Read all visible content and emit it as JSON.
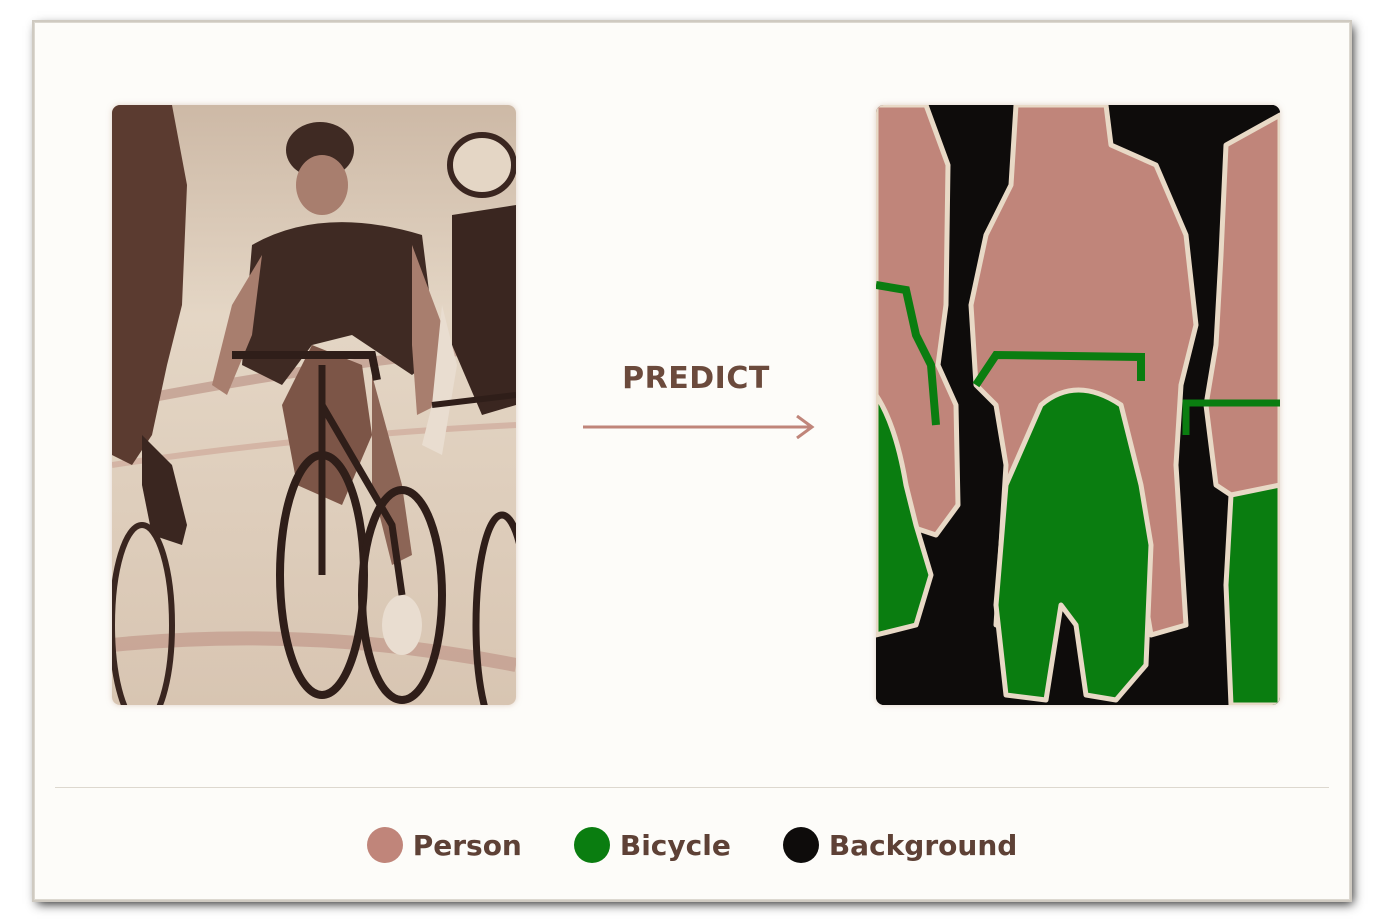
{
  "predict_label": "PREDICT",
  "legend": [
    {
      "label": "Person",
      "color": "#c0857a"
    },
    {
      "label": "Bicycle",
      "color": "#0a7d10"
    },
    {
      "label": "Background",
      "color": "#0e0c0b"
    }
  ],
  "colors": {
    "accent_text": "#6b4a3c",
    "arrow": "#c0857a",
    "sepia_light": "#e6d8c6",
    "sepia_dark": "#3a2620"
  }
}
